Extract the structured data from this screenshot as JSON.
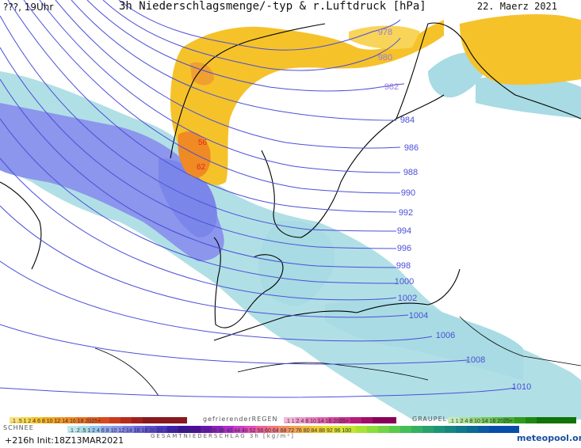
{
  "header": {
    "left": "???, 19Uhr",
    "title": "3h Niederschlagsmenge/-typ & r.Luftdruck [hPa]",
    "date": "22. Maerz 2021"
  },
  "isobars": [
    "978",
    "980",
    "982",
    "984",
    "986",
    "988",
    "990",
    "992",
    "994",
    "996",
    "998",
    "1000",
    "1002",
    "1004",
    "1006",
    "1008",
    "1010"
  ],
  "precip_labels": [
    "56",
    "62"
  ],
  "legend": {
    "rain_label": "",
    "freezing_label": "gefrierenderREGEN",
    "graupel_label": "GRAUPEL",
    "snow_label": "SCHNEE",
    "total_label": "GESAMTNIEDERSCHLAG 3h [kg/m²]",
    "rain_scale": [
      ".1",
      ".5",
      "1",
      "2",
      "4",
      "6",
      "8",
      "10",
      "12",
      "14",
      "16",
      "18",
      "2025+"
    ],
    "freezing_scale": [
      ".1",
      "1",
      "2",
      "4",
      "8",
      "10",
      "14",
      "16",
      "2025+"
    ],
    "graupel_scale": [
      ".1",
      "1",
      "2",
      "4",
      "8",
      "10",
      "14",
      "16",
      "2025+"
    ],
    "snow_scale": [
      ".1",
      ".2",
      ".5",
      "1",
      "2",
      "4",
      "6",
      "8",
      "10",
      "12",
      "14",
      "16",
      "18",
      "20",
      "22",
      "24",
      "26",
      "28",
      "30",
      "32",
      "34",
      "36",
      "38",
      "40",
      "44",
      "48",
      "52",
      "56",
      "60",
      "64",
      "68",
      "72",
      "76",
      "80",
      "84",
      "88",
      "92",
      "96",
      "100"
    ]
  },
  "footer": {
    "run": "+216h Init:18Z13MAR2021",
    "logo_text": "meteopool.org"
  },
  "colors": {
    "rain_yellow": "#f5c22a",
    "rain_orange": "#f08a24",
    "snow_light": "#9fd6df",
    "snow_blue": "#7d8fef",
    "isobar": "#4a4fd8"
  }
}
